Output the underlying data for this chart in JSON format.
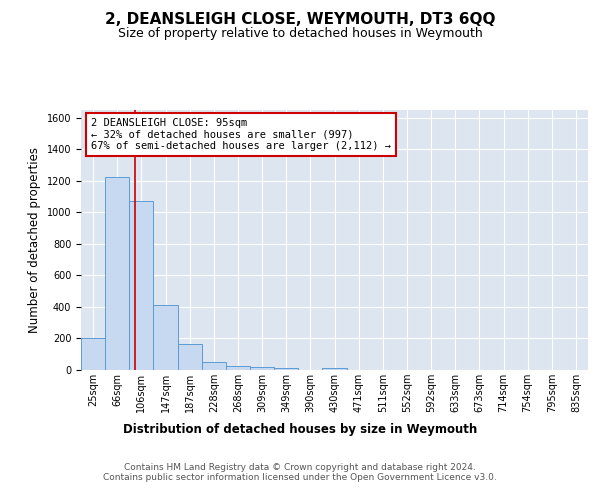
{
  "title": "2, DEANSLEIGH CLOSE, WEYMOUTH, DT3 6QQ",
  "subtitle": "Size of property relative to detached houses in Weymouth",
  "xlabel_bottom": "Distribution of detached houses by size in Weymouth",
  "ylabel": "Number of detached properties",
  "bar_labels": [
    "25sqm",
    "66sqm",
    "106sqm",
    "147sqm",
    "187sqm",
    "228sqm",
    "268sqm",
    "309sqm",
    "349sqm",
    "390sqm",
    "430sqm",
    "471sqm",
    "511sqm",
    "552sqm",
    "592sqm",
    "633sqm",
    "673sqm",
    "714sqm",
    "754sqm",
    "795sqm",
    "835sqm"
  ],
  "bar_heights": [
    205,
    1225,
    1070,
    410,
    165,
    48,
    25,
    20,
    15,
    0,
    15,
    0,
    0,
    0,
    0,
    0,
    0,
    0,
    0,
    0,
    0
  ],
  "bar_color": "#c7d9f0",
  "bar_edge_color": "#5b9bd5",
  "ylim": [
    0,
    1650
  ],
  "yticks": [
    0,
    200,
    400,
    600,
    800,
    1000,
    1200,
    1400,
    1600
  ],
  "annotation_text": "2 DEANSLEIGH CLOSE: 95sqm\n← 32% of detached houses are smaller (997)\n67% of semi-detached houses are larger (2,112) →",
  "annotation_box_color": "#ffffff",
  "annotation_box_edge_color": "#cc0000",
  "footer_text": "Contains HM Land Registry data © Crown copyright and database right 2024.\nContains public sector information licensed under the Open Government Licence v3.0.",
  "background_color": "#dde6f0",
  "grid_color": "#ffffff",
  "title_fontsize": 11,
  "subtitle_fontsize": 9,
  "ylabel_fontsize": 8.5,
  "tick_fontsize": 7,
  "footer_fontsize": 6.5,
  "xlabel_bottom_fontsize": 8.5
}
